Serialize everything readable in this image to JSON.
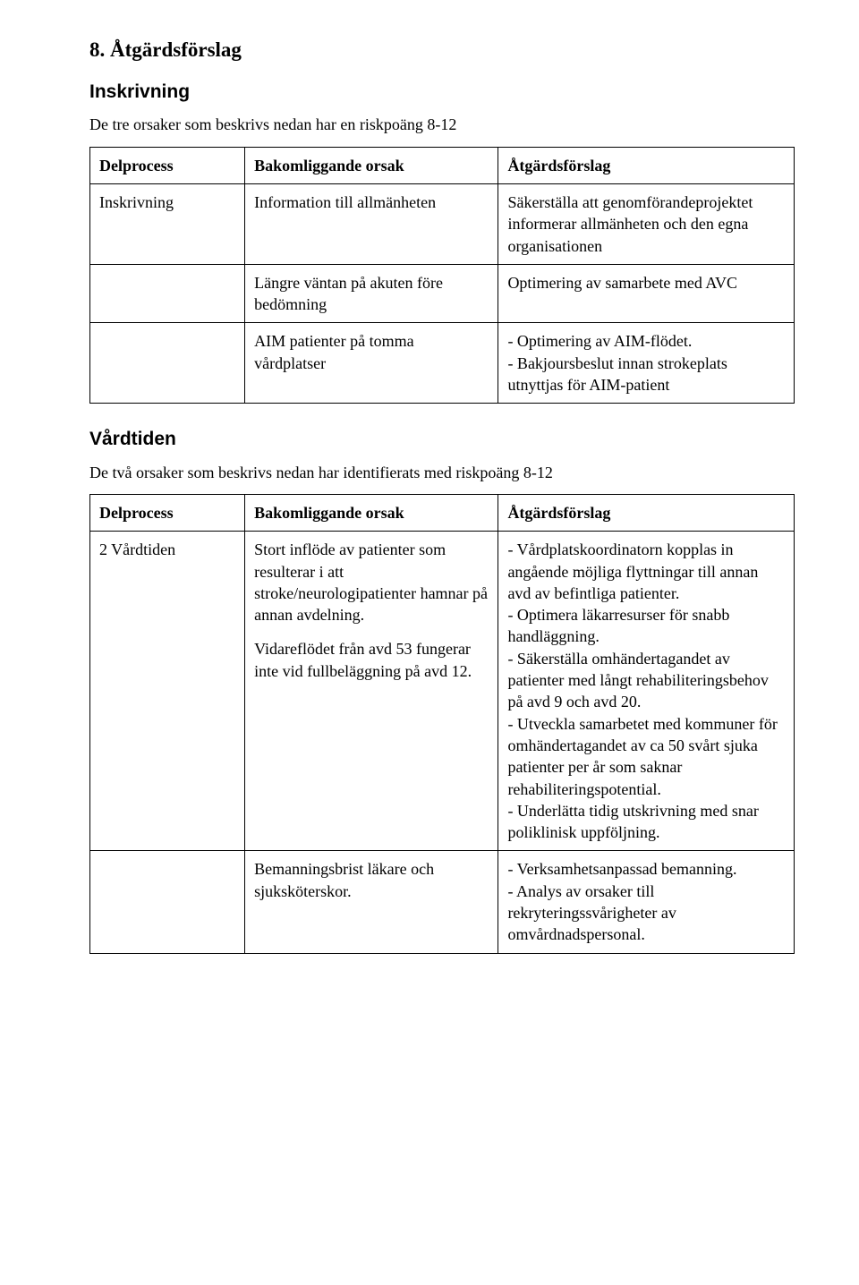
{
  "section": {
    "number_title": "8. Åtgärdsförslag"
  },
  "inskrivning": {
    "heading": "Inskrivning",
    "intro": "De tre orsaker som beskrivs nedan har en riskpoäng 8-12",
    "table": {
      "headers": {
        "c1": "Delprocess",
        "c2": "Bakomliggande orsak",
        "c3": "Åtgärdsförslag"
      },
      "rows": [
        {
          "c1": "Inskrivning",
          "c2": "Information till allmänheten",
          "c3": "Säkerställa att genomförandeprojektet informerar allmänheten och den egna organisationen"
        },
        {
          "c1": "",
          "c2": "Längre väntan på akuten före bedömning",
          "c3": "Optimering av samarbete med AVC"
        },
        {
          "c1": "",
          "c2": "AIM patienter på tomma vårdplatser",
          "c3_lines": [
            "- Optimering av AIM-flödet.",
            "- Bakjoursbeslut innan strokeplats utnyttjas för AIM-patient"
          ]
        }
      ]
    }
  },
  "vardtiden": {
    "heading": "Vårdtiden",
    "intro": "De två orsaker som beskrivs nedan har identifierats med riskpoäng 8-12",
    "table": {
      "headers": {
        "c1": "Delprocess",
        "c2": "Bakomliggande orsak",
        "c3": "Åtgärdsförslag"
      },
      "rows": [
        {
          "c1": "2 Vårdtiden",
          "c2_blocks": [
            "Stort inflöde av patienter som resulterar i att stroke/neurologipatienter hamnar på annan avdelning.",
            "Vidareflödet från avd 53 fungerar inte vid fullbeläggning på avd 12."
          ],
          "c3_lines": [
            "- Vårdplatskoordinatorn kopplas in angående möjliga flyttningar till annan avd av befintliga patienter.",
            "- Optimera läkarresurser för snabb handläggning.",
            "- Säkerställa omhändertagandet av patienter med långt rehabiliteringsbehov på avd 9 och avd 20.",
            "- Utveckla samarbetet med kommuner för omhändertagandet av ca 50 svårt sjuka patienter per år som saknar rehabiliteringspotential.",
            "- Underlätta tidig utskrivning med snar poliklinisk uppföljning."
          ]
        },
        {
          "c1": "",
          "c2": "Bemanningsbrist läkare och sjuksköterskor.",
          "c3_lines": [
            "- Verksamhetsanpassad bemanning.",
            "- Analys av orsaker till rekryteringssvårigheter av omvårdnadspersonal."
          ]
        }
      ]
    }
  }
}
